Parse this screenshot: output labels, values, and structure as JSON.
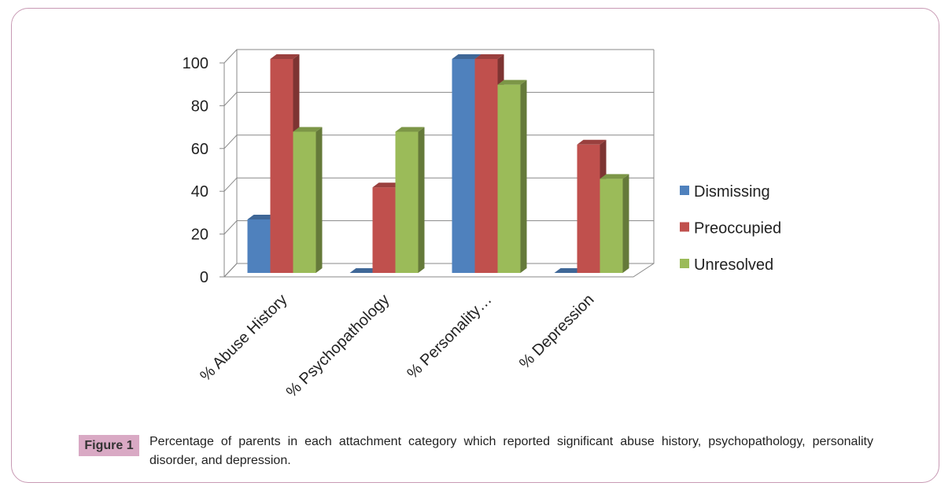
{
  "chart_data": {
    "type": "bar3d",
    "categories": [
      "% Abuse History",
      "% Psychopathology",
      "% Personality…",
      "% Depression"
    ],
    "series": [
      {
        "name": "Dismissing",
        "color": "#4f81bd",
        "values": [
          25,
          0,
          100,
          0
        ]
      },
      {
        "name": "Preoccupied",
        "color": "#c0504d",
        "values": [
          100,
          40,
          100,
          60
        ]
      },
      {
        "name": "Unresolved",
        "color": "#9bbb59",
        "values": [
          66,
          66,
          88,
          44
        ]
      }
    ],
    "ylim": [
      0,
      100
    ],
    "yticks": [
      0,
      20,
      40,
      60,
      80,
      100
    ],
    "grid": true,
    "legend": "right"
  },
  "figure": {
    "label": "Figure 1",
    "caption": "Percentage of parents in each attachment category which reported significant abuse history, psychopathology, personality disorder, and depression."
  }
}
